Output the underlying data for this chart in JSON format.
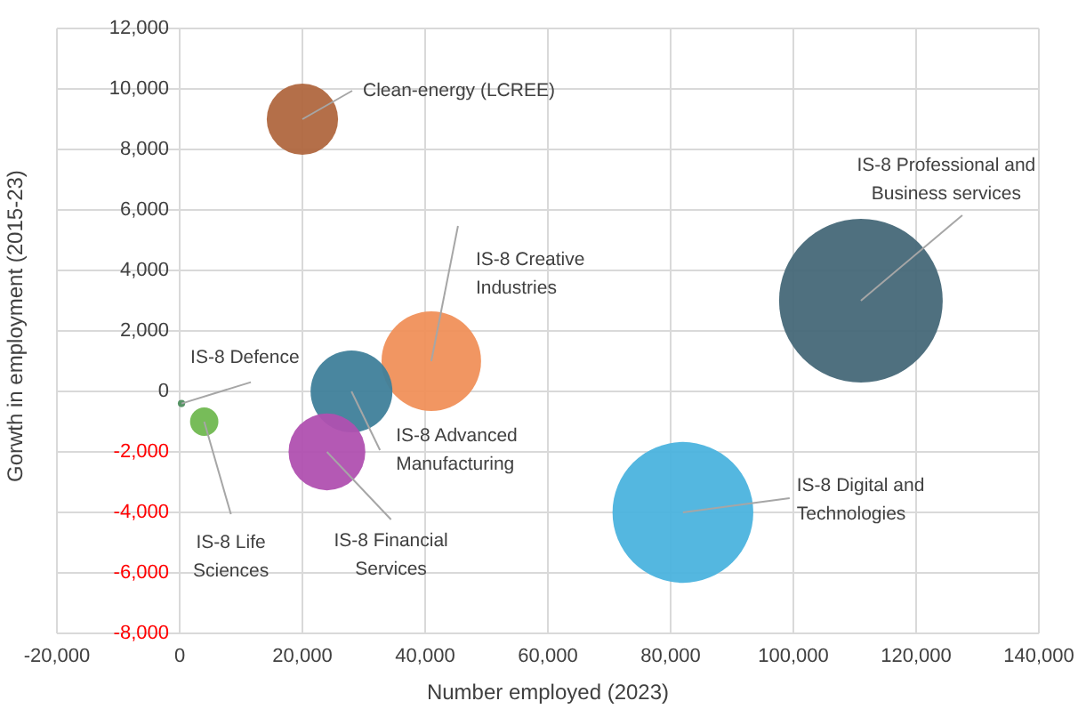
{
  "chart_data": {
    "type": "bubble",
    "xlabel": "Number employed (2023)",
    "ylabel": "Gorwth in employment (2015-23)",
    "xlim": [
      -20000,
      140000
    ],
    "xticks": [
      {
        "value": -20000,
        "label": "-20,000"
      },
      0,
      {
        "value": 20000,
        "label": "20,000"
      },
      {
        "value": 40000,
        "label": "40,000"
      },
      {
        "value": 60000,
        "label": "60,000"
      },
      {
        "value": 80000,
        "label": "80,000"
      },
      {
        "value": 100000,
        "label": "100,000"
      },
      {
        "value": 120000,
        "label": "120,000"
      },
      {
        "value": 140000,
        "label": "140,000"
      }
    ],
    "ylim": [
      -8000,
      12000
    ],
    "yticks": [
      {
        "value": -8000,
        "label": "-8,000"
      },
      {
        "value": -6000,
        "label": "-6,000"
      },
      {
        "value": -4000,
        "label": "-4,000"
      },
      {
        "value": -2000,
        "label": "-2,000"
      },
      0,
      {
        "value": 2000,
        "label": "2,000"
      },
      {
        "value": 4000,
        "label": "4,000"
      },
      {
        "value": 6000,
        "label": "6,000"
      },
      {
        "value": 8000,
        "label": "8,000"
      },
      {
        "value": 10000,
        "label": "10,000"
      },
      {
        "value": 12000,
        "label": "12,000"
      }
    ],
    "grid": true,
    "series": [
      {
        "name": "Clean-energy (LCREE)",
        "color": "#b0673f",
        "x": [
          20000
        ],
        "values": [
          9000
        ],
        "sizes": [
          0.19
        ]
      },
      {
        "name": "IS-8 Creative Industries",
        "color": "#f0905a",
        "x": [
          41000
        ],
        "values": [
          1000
        ],
        "sizes": [
          0.37
        ]
      },
      {
        "name": "IS-8 Advanced Manufacturing",
        "color": "#3f7f9a",
        "x": [
          28000
        ],
        "values": [
          0
        ],
        "sizes": [
          0.25
        ]
      },
      {
        "name": "IS-8 Financial Services",
        "color": "#b050b0",
        "x": [
          24000
        ],
        "values": [
          -2000
        ],
        "sizes": [
          0.22
        ]
      },
      {
        "name": "IS-8 Life Sciences",
        "color": "#70b850",
        "x": [
          4000
        ],
        "values": [
          -1000
        ],
        "sizes": [
          0.03
        ]
      },
      {
        "name": "IS-8 Defence",
        "color": "#4f8f5f",
        "x": [
          300
        ],
        "values": [
          -400
        ],
        "sizes": [
          0.002
        ]
      },
      {
        "name": "IS-8 Professional and Business services",
        "color": "#466878",
        "x": [
          111000
        ],
        "values": [
          3000
        ],
        "sizes": [
          1
        ]
      },
      {
        "name": "IS-8 Digital and Technologies",
        "color": "#4bb3de",
        "x": [
          82000
        ],
        "values": [
          -4000
        ],
        "sizes": [
          0.74
        ]
      }
    ]
  }
}
